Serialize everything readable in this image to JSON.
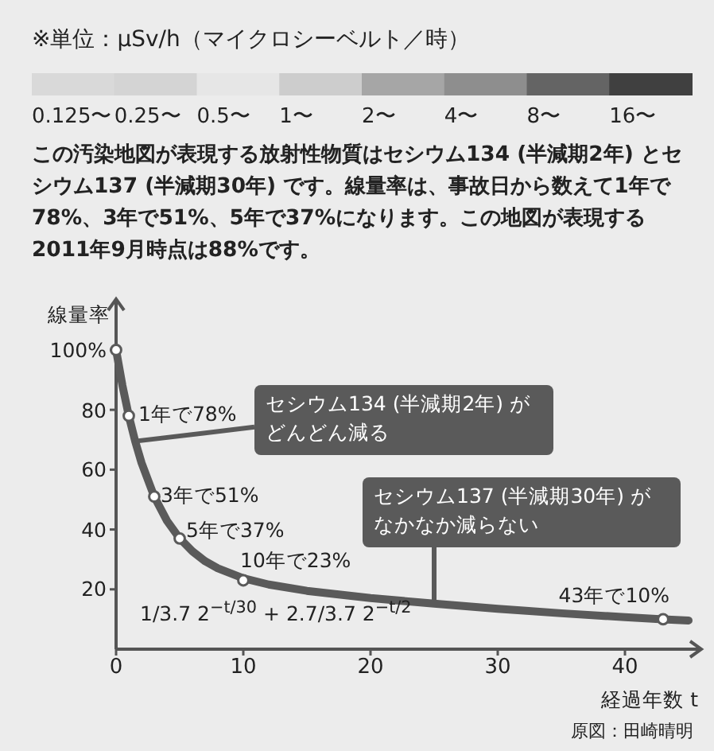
{
  "chart_data": [
    {
      "type": "other",
      "title": "※単位：μSv/h（マイクロシーベルト／時）",
      "categories": [
        "0.125〜",
        "0.25〜",
        "0.5〜",
        "1〜",
        "2〜",
        "4〜",
        "8〜",
        "16〜"
      ],
      "colors": [
        "#d9d9d9",
        "#d4d4d4",
        "#e6e6e6",
        "#cdcdcd",
        "#a6a6a6",
        "#8e8e8e",
        "#646464",
        "#404040"
      ],
      "annotations": [
        "この汚染地図が表現する放射性物質はセシウム134 (半減期2年) とセシウム137 (半減期30年) です。線量率は、事故日から数えて1年で78%、3年で51%、5年で37%になります。この地図が表現する2011年9月時点は88%です。"
      ]
    },
    {
      "type": "line",
      "ylabel": "線量率",
      "xlabel": "経過年数 t",
      "xlim": [
        0,
        46
      ],
      "ylim": [
        0,
        117
      ],
      "xticks": [
        0,
        10,
        20,
        30,
        40
      ],
      "yticks": [
        {
          "value": 100,
          "label": "100%"
        },
        80,
        60,
        40,
        20
      ],
      "grid": false,
      "series": [
        {
          "type": "line",
          "color": "#5a5a5a",
          "marker": "none",
          "x": [
            0,
            0.5,
            1,
            1.5,
            2,
            3,
            4,
            5,
            6,
            7,
            8,
            10,
            12,
            15,
            20,
            25,
            30,
            35,
            40,
            43,
            45
          ],
          "values": [
            100,
            88.1,
            78,
            69.5,
            62.3,
            51,
            42.9,
            37,
            32.7,
            29.4,
            27,
            23.7,
            21.6,
            19.5,
            17.1,
            15.2,
            13.5,
            12,
            10.7,
            10,
            9.6
          ]
        },
        {
          "type": "scatter",
          "color": "#5a5a5a",
          "marker": "circle",
          "x": [
            0,
            1,
            3,
            5,
            10,
            43
          ],
          "values": [
            100,
            78,
            51,
            37,
            23,
            10
          ]
        }
      ],
      "annotations": [
        {
          "text": "1年で78%",
          "x": 1,
          "y": 78
        },
        {
          "text": "3年で51%",
          "x": 3,
          "y": 51
        },
        {
          "text": "5年で37%",
          "x": 5,
          "y": 37
        },
        {
          "text": "10年で23%",
          "x": 10,
          "y": 23
        },
        {
          "text": "43年で10%",
          "x": 43,
          "y": 10
        },
        {
          "text": "セシウム134 (半減期2年) がどんどん減る",
          "x": 1.5,
          "y": 69.5
        },
        {
          "text": "セシウム137 (半減期30年) がなかなか減らない",
          "x": 25,
          "y": 15.2
        },
        "1/3.7 2$^{−t/30}$ + 2.7/3.7 2$^{−t/2}$",
        "原図：田崎晴明"
      ]
    }
  ]
}
